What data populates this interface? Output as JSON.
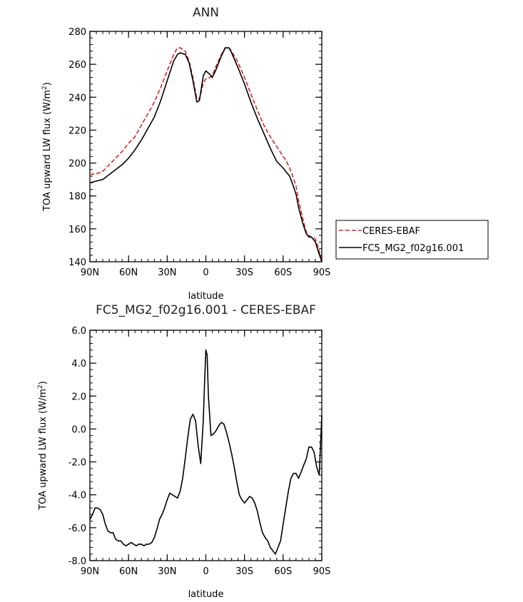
{
  "chart_data": [
    {
      "type": "line",
      "title": "ANN",
      "xlabel": "latitude",
      "ylabel": "TOA upward LW flux (W/m",
      "ylabel_sup": "2",
      "ylabel_close": ")",
      "xlim": [
        90,
        -90
      ],
      "ylim": [
        140,
        280
      ],
      "x_ticks": [
        90,
        60,
        30,
        0,
        -30,
        -60,
        -90
      ],
      "x_tick_labels": [
        "90N",
        "60N",
        "30N",
        "0",
        "30S",
        "60S",
        "90S"
      ],
      "y_ticks": [
        140,
        160,
        180,
        200,
        220,
        240,
        260,
        280
      ],
      "y_tick_labels": [
        "140",
        "160",
        "180",
        "200",
        "220",
        "240",
        "260",
        "280"
      ],
      "legend_position": "right",
      "series": [
        {
          "name": "CERES-EBAF",
          "color": "#e0201b",
          "dash": "dashed",
          "x": [
            90,
            85,
            80,
            75,
            70,
            65,
            60,
            55,
            50,
            45,
            40,
            35,
            30,
            25,
            22,
            20,
            16,
            13,
            10,
            7,
            5,
            3,
            2,
            0,
            -3,
            -5,
            -8,
            -12,
            -15,
            -18,
            -20,
            -25,
            -30,
            -35,
            -40,
            -45,
            -50,
            -55,
            -60,
            -62,
            -65,
            -67,
            -70,
            -72,
            -75,
            -78,
            -80,
            -82,
            -85,
            -87,
            -90
          ],
          "y": [
            193,
            193.5,
            195,
            199,
            203,
            207,
            212,
            216,
            223,
            230,
            237,
            246,
            256,
            266,
            270,
            270,
            268,
            262,
            252,
            239,
            239,
            245,
            249,
            251,
            252,
            253,
            259,
            266,
            270,
            270,
            268,
            261,
            252,
            242,
            232,
            223,
            216,
            210,
            204,
            202,
            197,
            193,
            186,
            177,
            167,
            158,
            156,
            155,
            154,
            149,
            141
          ]
        },
        {
          "name": "FC5_MG2_f02g16.001",
          "color": "#000000",
          "dash": "solid",
          "x": [
            90,
            85,
            80,
            75,
            70,
            65,
            60,
            55,
            50,
            45,
            40,
            35,
            30,
            25,
            22,
            20,
            16,
            13,
            10,
            7,
            5,
            3,
            2,
            0,
            -3,
            -5,
            -8,
            -12,
            -15,
            -18,
            -20,
            -25,
            -30,
            -35,
            -40,
            -45,
            -50,
            -55,
            -60,
            -62,
            -65,
            -67,
            -70,
            -72,
            -75,
            -78,
            -80,
            -82,
            -85,
            -87,
            -90
          ],
          "y": [
            188,
            189,
            190,
            193,
            196,
            199,
            203,
            208,
            214,
            221,
            228,
            238,
            250,
            262,
            266,
            267,
            266,
            261,
            250,
            237,
            238,
            248,
            253,
            256,
            254,
            252,
            257,
            265,
            270,
            270,
            267,
            258,
            248,
            237,
            227,
            218,
            209,
            201,
            197,
            195,
            192,
            188,
            181,
            173,
            164,
            157,
            155,
            155,
            152,
            147,
            140
          ]
        }
      ]
    },
    {
      "type": "line",
      "title": "FC5_MG2_f02g16.001 - CERES-EBAF",
      "xlabel": "latitude",
      "ylabel": "TOA upward LW flux (W/m",
      "ylabel_sup": "2",
      "ylabel_close": ")",
      "xlim": [
        90,
        -90
      ],
      "ylim": [
        -8,
        6
      ],
      "x_ticks": [
        90,
        60,
        30,
        0,
        -30,
        -60,
        -90
      ],
      "x_tick_labels": [
        "90N",
        "60N",
        "30N",
        "0",
        "30S",
        "60S",
        "90S"
      ],
      "y_ticks": [
        -8,
        -6,
        -4,
        -2,
        0,
        2,
        4,
        6
      ],
      "y_tick_labels": [
        "-8.0",
        "-6.0",
        "-4.0",
        "-2.0",
        "0.0",
        "2.0",
        "4.0",
        "6.0"
      ],
      "series": [
        {
          "color": "#000000",
          "dash": "solid",
          "x": [
            90,
            88,
            86,
            84,
            82,
            80,
            78,
            76,
            74,
            72,
            70,
            68,
            66,
            64,
            62,
            60,
            58,
            56,
            54,
            52,
            50,
            48,
            46,
            44,
            42,
            40,
            38,
            36,
            34,
            32,
            30,
            28,
            26,
            24,
            22,
            20,
            18,
            16,
            14,
            12,
            10,
            8,
            6,
            4,
            2,
            1,
            0,
            -1,
            -2,
            -4,
            -6,
            -8,
            -10,
            -12,
            -14,
            -16,
            -18,
            -20,
            -22,
            -24,
            -26,
            -28,
            -30,
            -32,
            -34,
            -36,
            -38,
            -40,
            -42,
            -44,
            -46,
            -48,
            -50,
            -52,
            -54,
            -56,
            -58,
            -60,
            -62,
            -64,
            -66,
            -68,
            -70,
            -72,
            -74,
            -76,
            -78,
            -80,
            -82,
            -84,
            -86,
            -88,
            -90
          ],
          "y": [
            -5.5,
            -5.2,
            -4.8,
            -4.8,
            -4.9,
            -5.2,
            -5.8,
            -6.2,
            -6.3,
            -6.3,
            -6.7,
            -6.8,
            -6.8,
            -7.0,
            -7.1,
            -7.0,
            -6.9,
            -7.0,
            -7.1,
            -7.0,
            -7.0,
            -7.1,
            -7.0,
            -7.0,
            -6.9,
            -6.6,
            -6.1,
            -5.5,
            -5.2,
            -4.8,
            -4.3,
            -3.9,
            -4.0,
            -4.1,
            -4.2,
            -3.8,
            -3.0,
            -1.8,
            -0.5,
            0.6,
            0.9,
            0.5,
            -1.0,
            -2.1,
            0.5,
            2.8,
            4.8,
            4.5,
            2.0,
            -0.4,
            -0.3,
            -0.1,
            0.2,
            0.4,
            0.3,
            -0.2,
            -0.8,
            -1.5,
            -2.3,
            -3.2,
            -4.0,
            -4.3,
            -4.5,
            -4.3,
            -4.1,
            -4.2,
            -4.5,
            -5.0,
            -5.7,
            -6.3,
            -6.6,
            -6.8,
            -7.2,
            -7.4,
            -7.6,
            -7.2,
            -6.8,
            -5.8,
            -4.8,
            -3.8,
            -3.0,
            -2.7,
            -2.7,
            -3.0,
            -2.6,
            -2.2,
            -1.8,
            -1.1,
            -1.1,
            -1.4,
            -2.3,
            -2.8,
            0.8
          ]
        }
      ]
    }
  ]
}
